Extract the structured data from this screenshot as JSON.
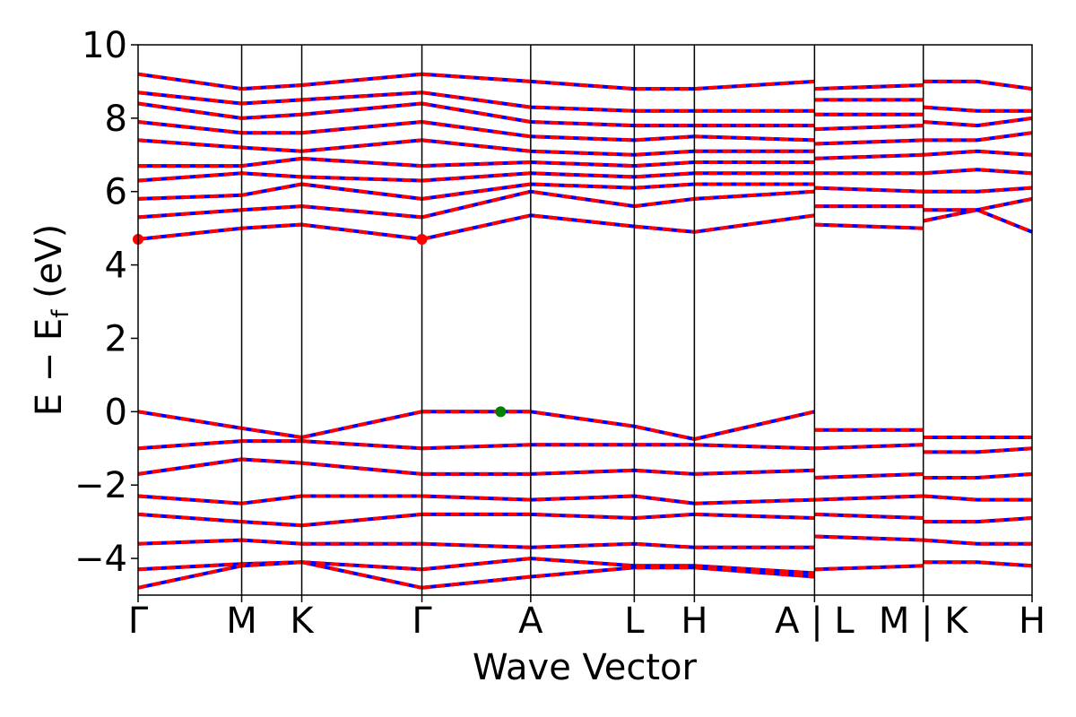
{
  "chart_data": {
    "type": "line",
    "title": "",
    "xlabel": "Wave Vector",
    "ylabel": "E − E",
    "ylabel_sub": "f",
    "ylabel_unit": " (eV)",
    "ylim": [
      -5,
      10
    ],
    "yticks": [
      "−4",
      "−2",
      "0",
      "2",
      "4",
      "6",
      "8",
      "10"
    ],
    "ytick_values": [
      -4,
      -2,
      0,
      2,
      4,
      6,
      8,
      10
    ],
    "kpath": [
      {
        "label": "Γ",
        "x": 0.0
      },
      {
        "label": "M",
        "x": 1.0
      },
      {
        "label": "K",
        "x": 1.58
      },
      {
        "label": "Γ",
        "x": 2.74
      },
      {
        "label": "A",
        "x": 3.79
      },
      {
        "label": "L",
        "x": 4.79
      },
      {
        "label": "H",
        "x": 5.37
      },
      {
        "label": "A | L",
        "x": 6.53
      },
      {
        "label": "M | K",
        "x": 7.58
      },
      {
        "label": "H",
        "x": 8.63
      }
    ],
    "xlim": [
      0.0,
      8.63
    ],
    "grid": false,
    "legend": "none",
    "series_colors": {
      "up": "#ff0000",
      "down": "#0000ff"
    },
    "bands": [
      {
        "segment": 0,
        "x": [
          0,
          1,
          1.58
        ],
        "y": [
          4.7,
          5.0,
          5.1
        ]
      },
      {
        "segment": 0,
        "x": [
          0,
          1,
          1.58
        ],
        "y": [
          5.3,
          5.5,
          5.6
        ]
      },
      {
        "segment": 0,
        "x": [
          0,
          1,
          1.58
        ],
        "y": [
          5.8,
          5.9,
          6.2
        ]
      },
      {
        "segment": 0,
        "x": [
          0,
          1,
          1.58
        ],
        "y": [
          6.3,
          6.5,
          6.4
        ]
      },
      {
        "segment": 0,
        "x": [
          0,
          1,
          1.58
        ],
        "y": [
          6.7,
          6.7,
          6.9
        ]
      },
      {
        "segment": 0,
        "x": [
          0,
          1,
          1.58
        ],
        "y": [
          7.4,
          7.2,
          7.1
        ]
      },
      {
        "segment": 0,
        "x": [
          0,
          1,
          1.58
        ],
        "y": [
          7.9,
          7.6,
          7.6
        ]
      },
      {
        "segment": 0,
        "x": [
          0,
          1,
          1.58
        ],
        "y": [
          8.4,
          8.0,
          8.1
        ]
      },
      {
        "segment": 0,
        "x": [
          0,
          1,
          1.58
        ],
        "y": [
          8.7,
          8.4,
          8.5
        ]
      },
      {
        "segment": 0,
        "x": [
          0,
          1,
          1.58
        ],
        "y": [
          9.2,
          8.8,
          8.9
        ]
      },
      {
        "segment": 1,
        "x": [
          1.58,
          2.74
        ],
        "y": [
          5.1,
          4.7
        ]
      },
      {
        "segment": 1,
        "x": [
          1.58,
          2.74
        ],
        "y": [
          5.6,
          5.3
        ]
      },
      {
        "segment": 1,
        "x": [
          1.58,
          2.74
        ],
        "y": [
          6.2,
          5.8
        ]
      },
      {
        "segment": 1,
        "x": [
          1.58,
          2.74
        ],
        "y": [
          6.4,
          6.3
        ]
      },
      {
        "segment": 1,
        "x": [
          1.58,
          2.74
        ],
        "y": [
          6.9,
          6.7
        ]
      },
      {
        "segment": 1,
        "x": [
          1.58,
          2.74
        ],
        "y": [
          7.1,
          7.4
        ]
      },
      {
        "segment": 1,
        "x": [
          1.58,
          2.74
        ],
        "y": [
          7.6,
          7.9
        ]
      },
      {
        "segment": 1,
        "x": [
          1.58,
          2.74
        ],
        "y": [
          8.1,
          8.4
        ]
      },
      {
        "segment": 1,
        "x": [
          1.58,
          2.74
        ],
        "y": [
          8.5,
          8.7
        ]
      },
      {
        "segment": 1,
        "x": [
          1.58,
          2.74
        ],
        "y": [
          8.9,
          9.2
        ]
      },
      {
        "segment": 2,
        "x": [
          2.74,
          3.79,
          4.79,
          5.37,
          6.53
        ],
        "y": [
          4.7,
          5.35,
          5.05,
          4.9,
          5.35
        ]
      },
      {
        "segment": 2,
        "x": [
          2.74,
          3.79,
          4.79,
          5.37,
          6.53
        ],
        "y": [
          5.3,
          6.0,
          5.6,
          5.8,
          6.0
        ]
      },
      {
        "segment": 2,
        "x": [
          2.74,
          3.79,
          4.79,
          5.37,
          6.53
        ],
        "y": [
          5.8,
          6.2,
          6.1,
          6.2,
          6.2
        ]
      },
      {
        "segment": 2,
        "x": [
          2.74,
          3.79,
          4.79,
          5.37,
          6.53
        ],
        "y": [
          6.3,
          6.5,
          6.4,
          6.5,
          6.5
        ]
      },
      {
        "segment": 2,
        "x": [
          2.74,
          3.79,
          4.79,
          5.37,
          6.53
        ],
        "y": [
          6.7,
          6.8,
          6.7,
          6.8,
          6.8
        ]
      },
      {
        "segment": 2,
        "x": [
          2.74,
          3.79,
          4.79,
          5.37,
          6.53
        ],
        "y": [
          7.4,
          7.1,
          7.0,
          7.1,
          7.1
        ]
      },
      {
        "segment": 2,
        "x": [
          2.74,
          3.79,
          4.79,
          5.37,
          6.53
        ],
        "y": [
          7.9,
          7.5,
          7.4,
          7.5,
          7.4
        ]
      },
      {
        "segment": 2,
        "x": [
          2.74,
          3.79,
          4.79,
          5.37,
          6.53
        ],
        "y": [
          8.4,
          7.9,
          7.8,
          7.8,
          7.8
        ]
      },
      {
        "segment": 2,
        "x": [
          2.74,
          3.79,
          4.79,
          5.37,
          6.53
        ],
        "y": [
          8.7,
          8.3,
          8.2,
          8.2,
          8.2
        ]
      },
      {
        "segment": 2,
        "x": [
          2.74,
          3.79,
          4.79,
          5.37,
          6.53
        ],
        "y": [
          9.2,
          9.0,
          8.8,
          8.8,
          9.0
        ]
      },
      {
        "segment": 3,
        "x": [
          6.53,
          7.58
        ],
        "y": [
          5.1,
          5.0
        ]
      },
      {
        "segment": 3,
        "x": [
          6.53,
          7.58
        ],
        "y": [
          5.6,
          5.6
        ]
      },
      {
        "segment": 3,
        "x": [
          6.53,
          7.58
        ],
        "y": [
          6.1,
          6.0
        ]
      },
      {
        "segment": 3,
        "x": [
          6.53,
          7.58
        ],
        "y": [
          6.5,
          6.5
        ]
      },
      {
        "segment": 3,
        "x": [
          6.53,
          7.58
        ],
        "y": [
          6.9,
          7.0
        ]
      },
      {
        "segment": 3,
        "x": [
          6.53,
          7.58
        ],
        "y": [
          7.3,
          7.4
        ]
      },
      {
        "segment": 3,
        "x": [
          6.53,
          7.58
        ],
        "y": [
          7.7,
          7.8
        ]
      },
      {
        "segment": 3,
        "x": [
          6.53,
          7.58
        ],
        "y": [
          8.1,
          8.1
        ]
      },
      {
        "segment": 3,
        "x": [
          6.53,
          7.58
        ],
        "y": [
          8.5,
          8.5
        ]
      },
      {
        "segment": 3,
        "x": [
          6.53,
          7.58
        ],
        "y": [
          8.8,
          8.9
        ]
      },
      {
        "segment": 4,
        "x": [
          7.58,
          8.1,
          8.63
        ],
        "y": [
          5.2,
          5.5,
          4.9
        ]
      },
      {
        "segment": 4,
        "x": [
          7.58,
          8.1,
          8.63
        ],
        "y": [
          5.5,
          5.5,
          5.8
        ]
      },
      {
        "segment": 4,
        "x": [
          7.58,
          8.1,
          8.63
        ],
        "y": [
          6.0,
          6.0,
          6.1
        ]
      },
      {
        "segment": 4,
        "x": [
          7.58,
          8.1,
          8.63
        ],
        "y": [
          6.5,
          6.6,
          6.5
        ]
      },
      {
        "segment": 4,
        "x": [
          7.58,
          8.1,
          8.63
        ],
        "y": [
          7.0,
          7.1,
          7.0
        ]
      },
      {
        "segment": 4,
        "x": [
          7.58,
          8.1,
          8.63
        ],
        "y": [
          7.4,
          7.4,
          7.6
        ]
      },
      {
        "segment": 4,
        "x": [
          7.58,
          8.1,
          8.63
        ],
        "y": [
          7.9,
          7.8,
          8.0
        ]
      },
      {
        "segment": 4,
        "x": [
          7.58,
          8.1,
          8.63
        ],
        "y": [
          8.3,
          8.2,
          8.2
        ]
      },
      {
        "segment": 4,
        "x": [
          7.58,
          8.1,
          8.63
        ],
        "y": [
          9.0,
          9.0,
          8.8
        ]
      },
      {
        "segment": 0,
        "x": [
          0,
          1,
          1.58
        ],
        "y": [
          0.0,
          -0.45,
          -0.7
        ]
      },
      {
        "segment": 0,
        "x": [
          0,
          1,
          1.58
        ],
        "y": [
          -1.0,
          -0.8,
          -0.8
        ]
      },
      {
        "segment": 0,
        "x": [
          0,
          1,
          1.58
        ],
        "y": [
          -1.7,
          -1.3,
          -1.4
        ]
      },
      {
        "segment": 0,
        "x": [
          0,
          1,
          1.58
        ],
        "y": [
          -2.3,
          -2.5,
          -2.3
        ]
      },
      {
        "segment": 0,
        "x": [
          0,
          1,
          1.58
        ],
        "y": [
          -2.8,
          -3.0,
          -3.1
        ]
      },
      {
        "segment": 0,
        "x": [
          0,
          1,
          1.58
        ],
        "y": [
          -3.6,
          -3.5,
          -3.6
        ]
      },
      {
        "segment": 0,
        "x": [
          0,
          1,
          1.58
        ],
        "y": [
          -4.3,
          -4.15,
          -4.1
        ]
      },
      {
        "segment": 0,
        "x": [
          0,
          1,
          1.58
        ],
        "y": [
          -4.8,
          -4.2,
          -4.1
        ]
      },
      {
        "segment": 1,
        "x": [
          1.58,
          2.74
        ],
        "y": [
          -0.7,
          0.0
        ]
      },
      {
        "segment": 1,
        "x": [
          1.58,
          2.74
        ],
        "y": [
          -0.8,
          -1.0
        ]
      },
      {
        "segment": 1,
        "x": [
          1.58,
          2.74
        ],
        "y": [
          -1.4,
          -1.7
        ]
      },
      {
        "segment": 1,
        "x": [
          1.58,
          2.74
        ],
        "y": [
          -2.3,
          -2.3
        ]
      },
      {
        "segment": 1,
        "x": [
          1.58,
          2.74
        ],
        "y": [
          -3.1,
          -2.8
        ]
      },
      {
        "segment": 1,
        "x": [
          1.58,
          2.74
        ],
        "y": [
          -3.6,
          -3.6
        ]
      },
      {
        "segment": 1,
        "x": [
          1.58,
          2.74
        ],
        "y": [
          -4.1,
          -4.3
        ]
      },
      {
        "segment": 1,
        "x": [
          1.58,
          2.74
        ],
        "y": [
          -4.1,
          -4.8
        ]
      },
      {
        "segment": 2,
        "x": [
          2.74,
          3.79,
          4.79,
          5.37,
          6.53
        ],
        "y": [
          0.0,
          0.0,
          -0.4,
          -0.75,
          0.0
        ]
      },
      {
        "segment": 2,
        "x": [
          2.74,
          3.79,
          4.79,
          5.37,
          6.53
        ],
        "y": [
          -1.0,
          -0.9,
          -0.9,
          -0.9,
          -1.0
        ]
      },
      {
        "segment": 2,
        "x": [
          2.74,
          3.79,
          4.79,
          5.37,
          6.53
        ],
        "y": [
          -1.7,
          -1.7,
          -1.6,
          -1.7,
          -1.6
        ]
      },
      {
        "segment": 2,
        "x": [
          2.74,
          3.79,
          4.79,
          5.37,
          6.53
        ],
        "y": [
          -2.3,
          -2.4,
          -2.3,
          -2.5,
          -2.4
        ]
      },
      {
        "segment": 2,
        "x": [
          2.74,
          3.79,
          4.79,
          5.37,
          6.53
        ],
        "y": [
          -2.8,
          -2.8,
          -2.9,
          -2.8,
          -2.9
        ]
      },
      {
        "segment": 2,
        "x": [
          2.74,
          3.79,
          4.79,
          5.37,
          6.53
        ],
        "y": [
          -3.6,
          -3.7,
          -3.6,
          -3.7,
          -3.7
        ]
      },
      {
        "segment": 2,
        "x": [
          2.74,
          3.79,
          4.79,
          5.37,
          6.53
        ],
        "y": [
          -4.3,
          -4.0,
          -4.2,
          -4.2,
          -4.4
        ]
      },
      {
        "segment": 2,
        "x": [
          2.74,
          3.79,
          4.79,
          5.37,
          6.53
        ],
        "y": [
          -4.8,
          -4.5,
          -4.25,
          -4.25,
          -4.5
        ]
      },
      {
        "segment": 3,
        "x": [
          6.53,
          7.58
        ],
        "y": [
          -0.5,
          -0.5
        ]
      },
      {
        "segment": 3,
        "x": [
          6.53,
          7.58
        ],
        "y": [
          -1.0,
          -0.9
        ]
      },
      {
        "segment": 3,
        "x": [
          6.53,
          7.58
        ],
        "y": [
          -1.8,
          -1.7
        ]
      },
      {
        "segment": 3,
        "x": [
          6.53,
          7.58
        ],
        "y": [
          -2.4,
          -2.3
        ]
      },
      {
        "segment": 3,
        "x": [
          6.53,
          7.58
        ],
        "y": [
          -2.8,
          -2.9
        ]
      },
      {
        "segment": 3,
        "x": [
          6.53,
          7.58
        ],
        "y": [
          -3.4,
          -3.5
        ]
      },
      {
        "segment": 3,
        "x": [
          6.53,
          7.58
        ],
        "y": [
          -4.3,
          -4.2
        ]
      },
      {
        "segment": 4,
        "x": [
          7.58,
          8.1,
          8.63
        ],
        "y": [
          -0.7,
          -0.7,
          -0.7
        ]
      },
      {
        "segment": 4,
        "x": [
          7.58,
          8.1,
          8.63
        ],
        "y": [
          -1.1,
          -1.1,
          -1.0
        ]
      },
      {
        "segment": 4,
        "x": [
          7.58,
          8.1,
          8.63
        ],
        "y": [
          -1.8,
          -1.8,
          -1.7
        ]
      },
      {
        "segment": 4,
        "x": [
          7.58,
          8.1,
          8.63
        ],
        "y": [
          -2.3,
          -2.4,
          -2.4
        ]
      },
      {
        "segment": 4,
        "x": [
          7.58,
          8.1,
          8.63
        ],
        "y": [
          -3.0,
          -3.0,
          -2.9
        ]
      },
      {
        "segment": 4,
        "x": [
          7.58,
          8.1,
          8.63
        ],
        "y": [
          -3.5,
          -3.6,
          -3.6
        ]
      },
      {
        "segment": 4,
        "x": [
          7.58,
          8.1,
          8.63
        ],
        "y": [
          -4.1,
          -4.1,
          -4.2
        ]
      }
    ],
    "markers": [
      {
        "x": 0.0,
        "y": 4.7,
        "color": "#ff0000"
      },
      {
        "x": 2.74,
        "y": 4.7,
        "color": "#ff0000"
      },
      {
        "x": 3.5,
        "y": 0.0,
        "color": "#008000"
      }
    ]
  }
}
